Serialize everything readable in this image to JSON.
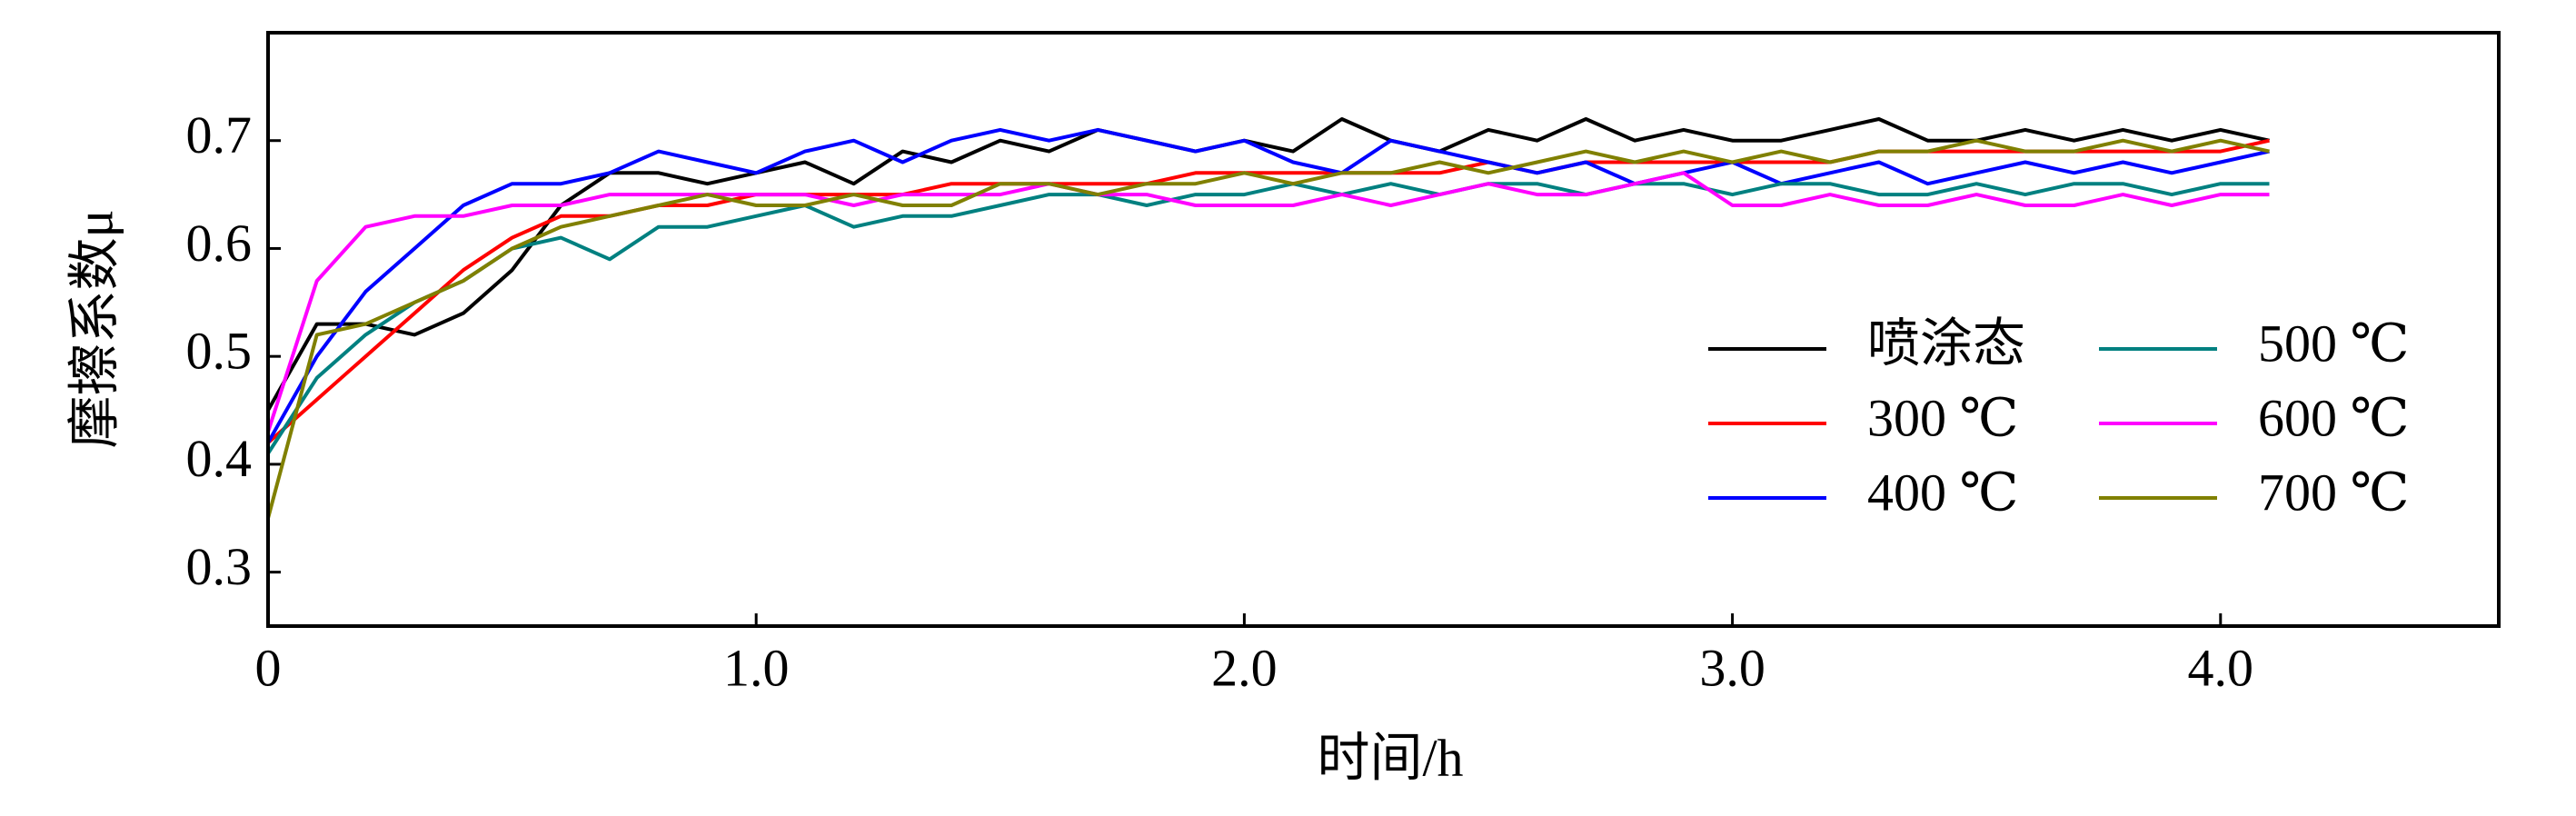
{
  "chart_data": {
    "type": "line",
    "xlabel": "时间/h",
    "ylabel": "摩擦系数μ",
    "x": [
      0,
      0.1,
      0.2,
      0.3,
      0.4,
      0.5,
      0.6,
      0.7,
      0.8,
      0.9,
      1.0,
      1.1,
      1.2,
      1.3,
      1.4,
      1.5,
      1.6,
      1.7,
      1.8,
      1.9,
      2.0,
      2.1,
      2.2,
      2.3,
      2.4,
      2.5,
      2.6,
      2.7,
      2.8,
      2.9,
      3.0,
      3.1,
      3.2,
      3.3,
      3.4,
      3.5,
      3.6,
      3.7,
      3.8,
      3.9,
      4.0,
      4.1
    ],
    "series": [
      {
        "name": "喷涂态",
        "color": "#000000",
        "values": [
          0.45,
          0.53,
          0.53,
          0.52,
          0.54,
          0.58,
          0.64,
          0.67,
          0.67,
          0.66,
          0.67,
          0.68,
          0.66,
          0.69,
          0.68,
          0.7,
          0.69,
          0.71,
          0.7,
          0.69,
          0.7,
          0.69,
          0.72,
          0.7,
          0.69,
          0.71,
          0.7,
          0.72,
          0.7,
          0.71,
          0.7,
          0.7,
          0.71,
          0.72,
          0.7,
          0.7,
          0.71,
          0.7,
          0.71,
          0.7,
          0.71,
          0.7
        ]
      },
      {
        "name": "300 ℃",
        "color": "#ff0000",
        "values": [
          0.42,
          0.46,
          0.5,
          0.54,
          0.58,
          0.61,
          0.63,
          0.63,
          0.64,
          0.64,
          0.65,
          0.65,
          0.65,
          0.65,
          0.66,
          0.66,
          0.66,
          0.66,
          0.66,
          0.67,
          0.67,
          0.67,
          0.67,
          0.67,
          0.67,
          0.68,
          0.67,
          0.68,
          0.68,
          0.68,
          0.68,
          0.68,
          0.68,
          0.69,
          0.69,
          0.69,
          0.69,
          0.69,
          0.69,
          0.69,
          0.69,
          0.7
        ]
      },
      {
        "name": "400 ℃",
        "color": "#0000ff",
        "values": [
          0.42,
          0.5,
          0.56,
          0.6,
          0.64,
          0.66,
          0.66,
          0.67,
          0.69,
          0.68,
          0.67,
          0.69,
          0.7,
          0.68,
          0.7,
          0.71,
          0.7,
          0.71,
          0.7,
          0.69,
          0.7,
          0.68,
          0.67,
          0.7,
          0.69,
          0.68,
          0.67,
          0.68,
          0.66,
          0.67,
          0.68,
          0.66,
          0.67,
          0.68,
          0.66,
          0.67,
          0.68,
          0.67,
          0.68,
          0.67,
          0.68,
          0.69
        ]
      },
      {
        "name": "500 ℃",
        "color": "#008080",
        "values": [
          0.41,
          0.48,
          0.52,
          0.55,
          0.57,
          0.6,
          0.61,
          0.59,
          0.62,
          0.62,
          0.63,
          0.64,
          0.62,
          0.63,
          0.63,
          0.64,
          0.65,
          0.65,
          0.64,
          0.65,
          0.65,
          0.66,
          0.65,
          0.66,
          0.65,
          0.66,
          0.66,
          0.65,
          0.66,
          0.66,
          0.65,
          0.66,
          0.66,
          0.65,
          0.65,
          0.66,
          0.65,
          0.66,
          0.66,
          0.65,
          0.66,
          0.66
        ]
      },
      {
        "name": "600 ℃",
        "color": "#ff00ff",
        "values": [
          0.43,
          0.57,
          0.62,
          0.63,
          0.63,
          0.64,
          0.64,
          0.65,
          0.65,
          0.65,
          0.65,
          0.65,
          0.64,
          0.65,
          0.65,
          0.65,
          0.66,
          0.65,
          0.65,
          0.64,
          0.64,
          0.64,
          0.65,
          0.64,
          0.65,
          0.66,
          0.65,
          0.65,
          0.66,
          0.67,
          0.64,
          0.64,
          0.65,
          0.64,
          0.64,
          0.65,
          0.64,
          0.64,
          0.65,
          0.64,
          0.65,
          0.65
        ]
      },
      {
        "name": "700 ℃",
        "color": "#808000",
        "values": [
          0.35,
          0.52,
          0.53,
          0.55,
          0.57,
          0.6,
          0.62,
          0.63,
          0.64,
          0.65,
          0.64,
          0.64,
          0.65,
          0.64,
          0.64,
          0.66,
          0.66,
          0.65,
          0.66,
          0.66,
          0.67,
          0.66,
          0.67,
          0.67,
          0.68,
          0.67,
          0.68,
          0.69,
          0.68,
          0.69,
          0.68,
          0.69,
          0.68,
          0.69,
          0.69,
          0.7,
          0.69,
          0.69,
          0.7,
          0.69,
          0.7,
          0.69
        ]
      }
    ],
    "xlim": [
      0,
      4.57
    ],
    "ylim": [
      0.25,
      0.8
    ],
    "xticks": [
      0,
      {
        "value": 1,
        "label": "1.0"
      },
      {
        "value": 2,
        "label": "2.0"
      },
      {
        "value": 3,
        "label": "3.0"
      },
      {
        "value": 4,
        "label": "4.0"
      }
    ],
    "yticks": [
      0.3,
      0.4,
      0.5,
      0.6,
      0.7
    ],
    "legend": "lower right",
    "grid": false
  }
}
